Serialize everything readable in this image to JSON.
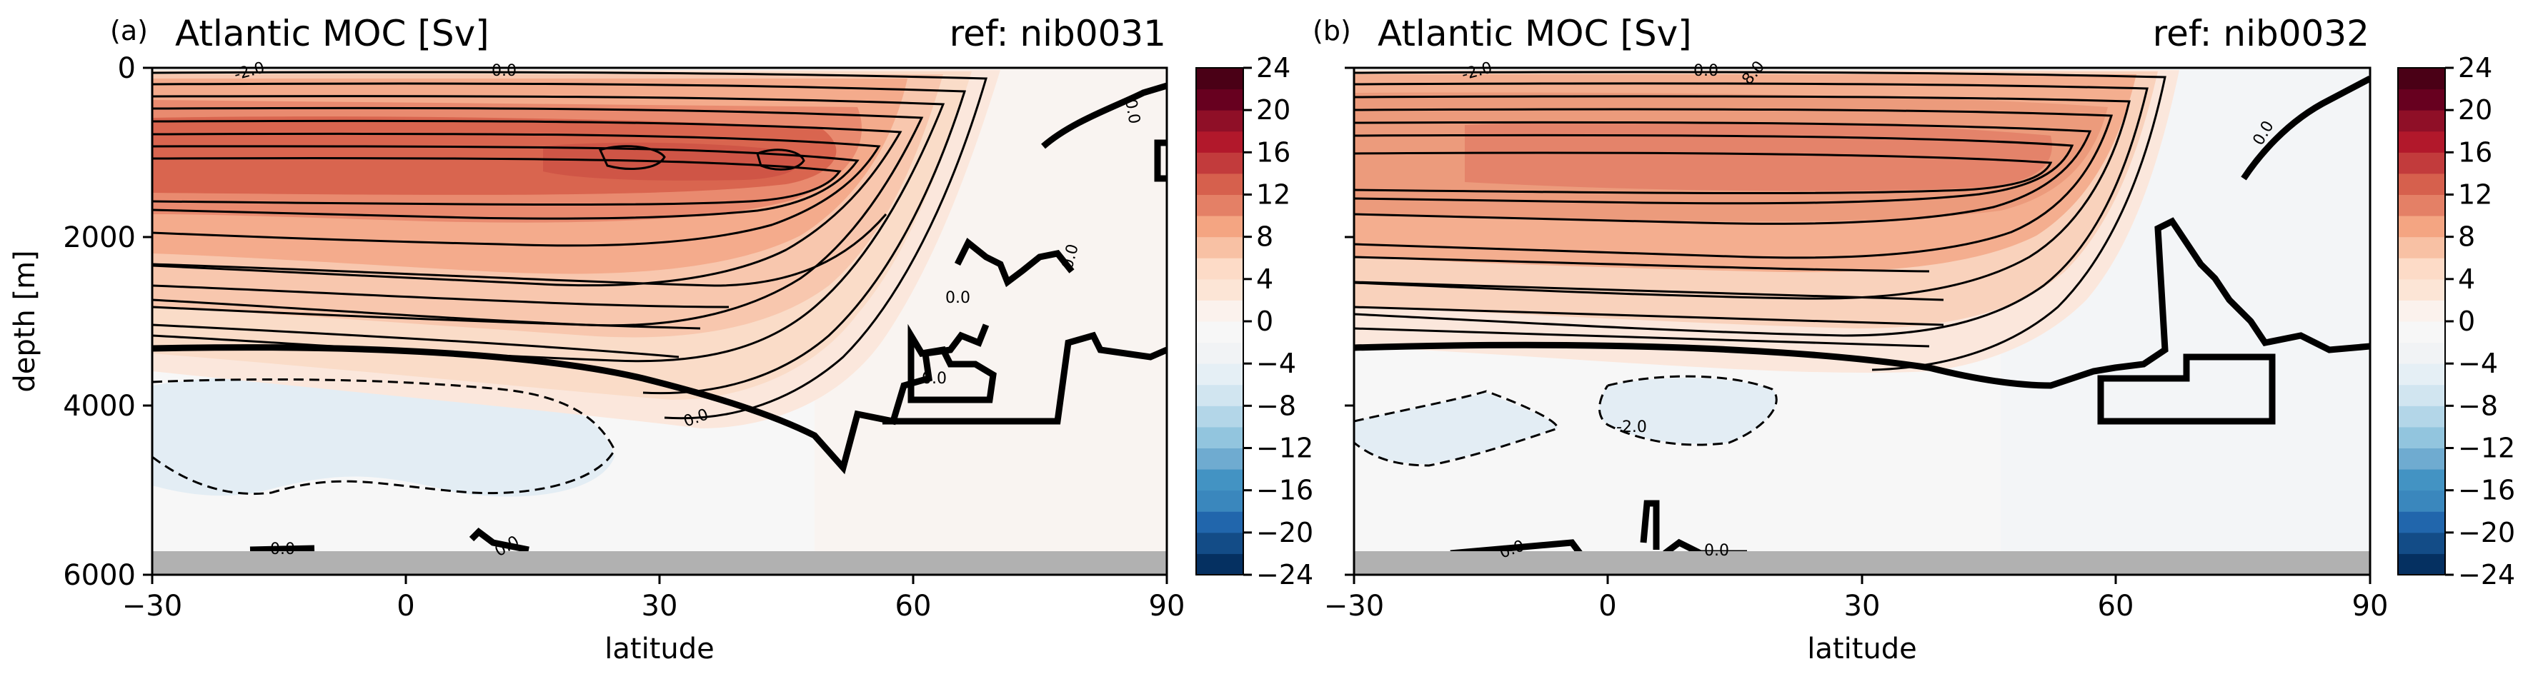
{
  "colorbar": {
    "ticks": [
      "24",
      "20",
      "16",
      "12",
      "8",
      "4",
      "0",
      "−4",
      "−8",
      "−12",
      "−16",
      "−20",
      "−24"
    ],
    "levels": [
      -24,
      -22,
      -20,
      -18,
      -16,
      -14,
      -12,
      -10,
      -8,
      -6,
      -4,
      -2,
      0,
      2,
      4,
      6,
      8,
      10,
      12,
      14,
      16,
      18,
      20,
      22,
      24
    ],
    "colors": [
      "#053061",
      "#134c87",
      "#2166ac",
      "#3a87bd",
      "#4393c3",
      "#6fabd0",
      "#92c5de",
      "#b3d6e8",
      "#d1e5f0",
      "#e5eff5",
      "#f1f3f5",
      "#f7f7f7",
      "#fbf2ed",
      "#fce5d6",
      "#fddbc7",
      "#f8c1a4",
      "#f4a582",
      "#e48066",
      "#d6604d",
      "#c23b3c",
      "#b2182b",
      "#8f0f27",
      "#67001f",
      "#4a0016"
    ]
  },
  "axes": {
    "xlabel": "latitude",
    "ylabel": "depth [m]",
    "xticks": [
      "−30",
      "0",
      "30",
      "60",
      "90"
    ],
    "yticks": [
      "0",
      "2000",
      "4000",
      "6000"
    ]
  },
  "chart_data": [
    {
      "type": "heatmap",
      "panel": "(a)",
      "title": "Atlantic MOC [Sv]",
      "ref": "ref: nib0031",
      "xlabel": "latitude",
      "ylabel": "depth [m]",
      "xlim": [
        -30,
        90
      ],
      "ylim": [
        6000,
        0
      ],
      "xticks": [
        -30,
        0,
        30,
        60,
        90
      ],
      "yticks": [
        0,
        2000,
        4000,
        6000
      ],
      "color_range": [
        -24,
        24
      ],
      "colormap": "RdBu_r",
      "max_streamfunction": 18,
      "core": {
        "lat_start": -30,
        "lat_end": 60,
        "lat_peak": 35,
        "depth_center": 1350
      },
      "zero_line_depth_south": 3300,
      "contour_labels": [
        "-2.0",
        "0.0",
        "0.0",
        "0.0",
        "0.0",
        "0.0",
        "0.0"
      ],
      "bottom_label_1": "0.0",
      "bottom_label_2": "0.0"
    },
    {
      "type": "heatmap",
      "panel": "(b)",
      "title": "Atlantic MOC [Sv]",
      "ref": "ref: nib0032",
      "xlabel": "latitude",
      "ylabel": "depth [m]",
      "xlim": [
        -30,
        90
      ],
      "ylim": [
        6000,
        0
      ],
      "xticks": [
        -30,
        0,
        30,
        60,
        90
      ],
      "yticks": [
        0,
        2000,
        4000,
        6000
      ],
      "color_range": [
        -24,
        24
      ],
      "colormap": "RdBu_r",
      "max_streamfunction": 15,
      "core": {
        "lat_start": -30,
        "lat_end": 58,
        "lat_peak": 30,
        "depth_center": 1300
      },
      "zero_line_depth_south": 3250,
      "contour_labels": [
        "-2.0",
        "0.0",
        "8.0",
        "0.0",
        "-2.0"
      ],
      "bottom_label_1": "0.0",
      "bottom_label_2": "0.0"
    }
  ]
}
